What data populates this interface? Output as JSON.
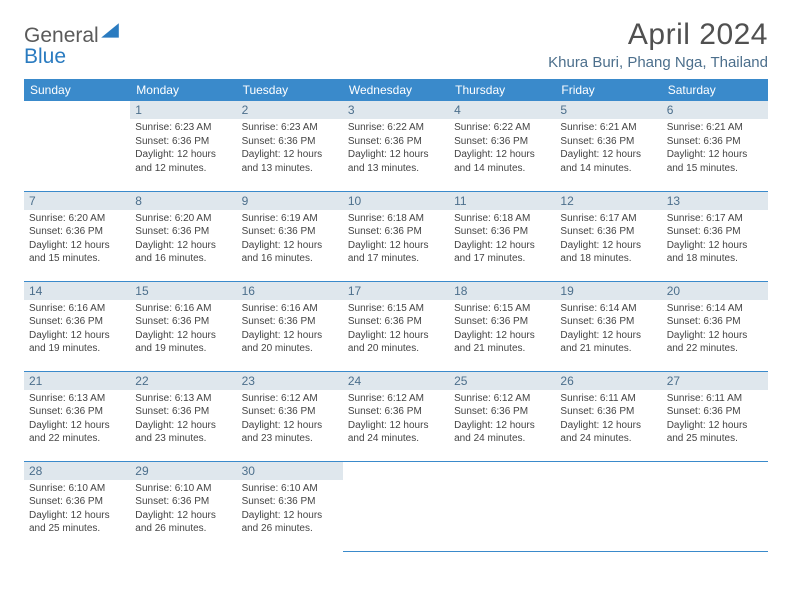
{
  "brand": {
    "word1": "General",
    "word2": "Blue"
  },
  "title": "April 2024",
  "location": "Khura Buri, Phang Nga, Thailand",
  "colors": {
    "header_bg": "#3a8acb",
    "header_text": "#ffffff",
    "daynum_bg": "#dfe7ed",
    "daynum_text": "#4c6f8c",
    "body_text": "#444444",
    "border": "#3a8acb",
    "location_text": "#4c6f8c",
    "title_text": "#505050"
  },
  "day_headers": [
    "Sunday",
    "Monday",
    "Tuesday",
    "Wednesday",
    "Thursday",
    "Friday",
    "Saturday"
  ],
  "weeks": [
    [
      null,
      {
        "n": "1",
        "sr": "Sunrise: 6:23 AM",
        "ss": "Sunset: 6:36 PM",
        "dl": "Daylight: 12 hours and 12 minutes."
      },
      {
        "n": "2",
        "sr": "Sunrise: 6:23 AM",
        "ss": "Sunset: 6:36 PM",
        "dl": "Daylight: 12 hours and 13 minutes."
      },
      {
        "n": "3",
        "sr": "Sunrise: 6:22 AM",
        "ss": "Sunset: 6:36 PM",
        "dl": "Daylight: 12 hours and 13 minutes."
      },
      {
        "n": "4",
        "sr": "Sunrise: 6:22 AM",
        "ss": "Sunset: 6:36 PM",
        "dl": "Daylight: 12 hours and 14 minutes."
      },
      {
        "n": "5",
        "sr": "Sunrise: 6:21 AM",
        "ss": "Sunset: 6:36 PM",
        "dl": "Daylight: 12 hours and 14 minutes."
      },
      {
        "n": "6",
        "sr": "Sunrise: 6:21 AM",
        "ss": "Sunset: 6:36 PM",
        "dl": "Daylight: 12 hours and 15 minutes."
      }
    ],
    [
      {
        "n": "7",
        "sr": "Sunrise: 6:20 AM",
        "ss": "Sunset: 6:36 PM",
        "dl": "Daylight: 12 hours and 15 minutes."
      },
      {
        "n": "8",
        "sr": "Sunrise: 6:20 AM",
        "ss": "Sunset: 6:36 PM",
        "dl": "Daylight: 12 hours and 16 minutes."
      },
      {
        "n": "9",
        "sr": "Sunrise: 6:19 AM",
        "ss": "Sunset: 6:36 PM",
        "dl": "Daylight: 12 hours and 16 minutes."
      },
      {
        "n": "10",
        "sr": "Sunrise: 6:18 AM",
        "ss": "Sunset: 6:36 PM",
        "dl": "Daylight: 12 hours and 17 minutes."
      },
      {
        "n": "11",
        "sr": "Sunrise: 6:18 AM",
        "ss": "Sunset: 6:36 PM",
        "dl": "Daylight: 12 hours and 17 minutes."
      },
      {
        "n": "12",
        "sr": "Sunrise: 6:17 AM",
        "ss": "Sunset: 6:36 PM",
        "dl": "Daylight: 12 hours and 18 minutes."
      },
      {
        "n": "13",
        "sr": "Sunrise: 6:17 AM",
        "ss": "Sunset: 6:36 PM",
        "dl": "Daylight: 12 hours and 18 minutes."
      }
    ],
    [
      {
        "n": "14",
        "sr": "Sunrise: 6:16 AM",
        "ss": "Sunset: 6:36 PM",
        "dl": "Daylight: 12 hours and 19 minutes."
      },
      {
        "n": "15",
        "sr": "Sunrise: 6:16 AM",
        "ss": "Sunset: 6:36 PM",
        "dl": "Daylight: 12 hours and 19 minutes."
      },
      {
        "n": "16",
        "sr": "Sunrise: 6:16 AM",
        "ss": "Sunset: 6:36 PM",
        "dl": "Daylight: 12 hours and 20 minutes."
      },
      {
        "n": "17",
        "sr": "Sunrise: 6:15 AM",
        "ss": "Sunset: 6:36 PM",
        "dl": "Daylight: 12 hours and 20 minutes."
      },
      {
        "n": "18",
        "sr": "Sunrise: 6:15 AM",
        "ss": "Sunset: 6:36 PM",
        "dl": "Daylight: 12 hours and 21 minutes."
      },
      {
        "n": "19",
        "sr": "Sunrise: 6:14 AM",
        "ss": "Sunset: 6:36 PM",
        "dl": "Daylight: 12 hours and 21 minutes."
      },
      {
        "n": "20",
        "sr": "Sunrise: 6:14 AM",
        "ss": "Sunset: 6:36 PM",
        "dl": "Daylight: 12 hours and 22 minutes."
      }
    ],
    [
      {
        "n": "21",
        "sr": "Sunrise: 6:13 AM",
        "ss": "Sunset: 6:36 PM",
        "dl": "Daylight: 12 hours and 22 minutes."
      },
      {
        "n": "22",
        "sr": "Sunrise: 6:13 AM",
        "ss": "Sunset: 6:36 PM",
        "dl": "Daylight: 12 hours and 23 minutes."
      },
      {
        "n": "23",
        "sr": "Sunrise: 6:12 AM",
        "ss": "Sunset: 6:36 PM",
        "dl": "Daylight: 12 hours and 23 minutes."
      },
      {
        "n": "24",
        "sr": "Sunrise: 6:12 AM",
        "ss": "Sunset: 6:36 PM",
        "dl": "Daylight: 12 hours and 24 minutes."
      },
      {
        "n": "25",
        "sr": "Sunrise: 6:12 AM",
        "ss": "Sunset: 6:36 PM",
        "dl": "Daylight: 12 hours and 24 minutes."
      },
      {
        "n": "26",
        "sr": "Sunrise: 6:11 AM",
        "ss": "Sunset: 6:36 PM",
        "dl": "Daylight: 12 hours and 24 minutes."
      },
      {
        "n": "27",
        "sr": "Sunrise: 6:11 AM",
        "ss": "Sunset: 6:36 PM",
        "dl": "Daylight: 12 hours and 25 minutes."
      }
    ],
    [
      {
        "n": "28",
        "sr": "Sunrise: 6:10 AM",
        "ss": "Sunset: 6:36 PM",
        "dl": "Daylight: 12 hours and 25 minutes."
      },
      {
        "n": "29",
        "sr": "Sunrise: 6:10 AM",
        "ss": "Sunset: 6:36 PM",
        "dl": "Daylight: 12 hours and 26 minutes."
      },
      {
        "n": "30",
        "sr": "Sunrise: 6:10 AM",
        "ss": "Sunset: 6:36 PM",
        "dl": "Daylight: 12 hours and 26 minutes."
      },
      null,
      null,
      null,
      null
    ]
  ]
}
